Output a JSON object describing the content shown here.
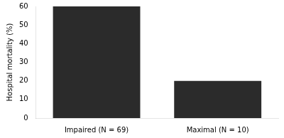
{
  "chart_data": {
    "type": "bar",
    "categories": [
      "Impaired (N = 69)",
      "Maximal (N = 10)"
    ],
    "values": [
      60,
      20
    ],
    "color": "#2b2b2b",
    "ylabel": "Hospital mortality (%)",
    "ylim": [
      0,
      60
    ],
    "yticks": [
      0,
      10,
      20,
      30,
      40,
      50,
      60
    ],
    "grid": false
  }
}
